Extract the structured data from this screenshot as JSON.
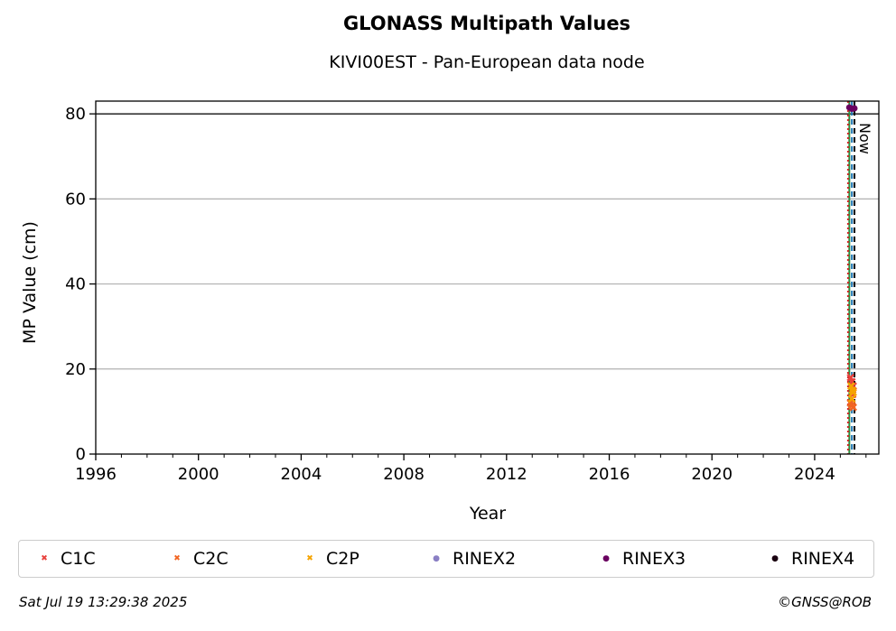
{
  "chart_data": {
    "type": "scatter",
    "title": "GLONASS Multipath Values",
    "subtitle": "KIVI00EST - Pan-European data node",
    "xlabel": "Year",
    "ylabel": "MP Value (cm)",
    "xlim": [
      1996,
      2026.5
    ],
    "ylim": [
      0,
      83
    ],
    "x_ticks": [
      "1996",
      "2000",
      "2004",
      "2008",
      "2012",
      "2016",
      "2020",
      "2024"
    ],
    "y_ticks": [
      "0",
      "20",
      "40",
      "60",
      "80"
    ],
    "grid": "horizontal",
    "reference_line_y": 80,
    "vlines": [
      {
        "x": 2025.35,
        "color": "#2e8b3e",
        "style": "solid"
      },
      {
        "x": 2025.3,
        "color": "#d62728",
        "style": "dotted"
      },
      {
        "x": 2025.45,
        "color": "#1f77b4",
        "style": "dashed"
      },
      {
        "x": 2025.55,
        "color": "#000000",
        "style": "dashed"
      }
    ],
    "now_label": "Now",
    "legend_position": "bottom",
    "series": [
      {
        "name": "C1C",
        "marker": "x",
        "color": "#e8413c",
        "x": [
          2025.4,
          2025.45,
          2025.5,
          2025.48
        ],
        "y": [
          18,
          17,
          16,
          14
        ]
      },
      {
        "name": "C2C",
        "marker": "x",
        "color": "#f26522",
        "x": [
          2025.4,
          2025.45,
          2025.5
        ],
        "y": [
          12,
          11.5,
          11
        ]
      },
      {
        "name": "C2P",
        "marker": "x",
        "color": "#f5a300",
        "x": [
          2025.42,
          2025.47,
          2025.5,
          2025.45
        ],
        "y": [
          16,
          15,
          14.5,
          13
        ]
      },
      {
        "name": "RINEX2",
        "marker": "o",
        "color": "#8a7fc4",
        "x": [],
        "y": []
      },
      {
        "name": "RINEX3",
        "marker": "o",
        "color": "#6a0060",
        "x": [
          2025.35,
          2025.45,
          2025.55
        ],
        "y": [
          81.5,
          81.2,
          81.3
        ]
      },
      {
        "name": "RINEX4",
        "marker": "o",
        "color": "#1a0010",
        "x": [],
        "y": []
      }
    ]
  },
  "footer": {
    "timestamp": "Sat Jul 19 13:29:38 2025",
    "copyright": "©GNSS@ROB"
  }
}
